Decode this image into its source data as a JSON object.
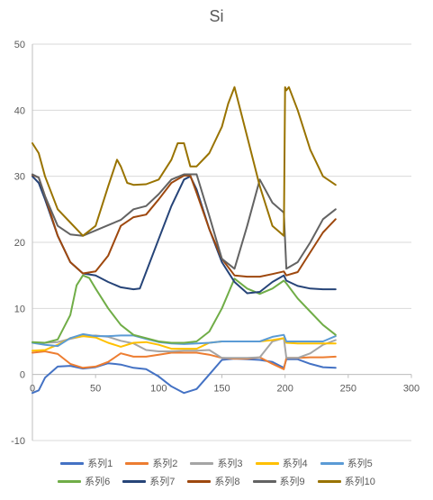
{
  "chart_data": {
    "type": "line",
    "title": "Si",
    "xlabel": "",
    "ylabel": "",
    "xlim": [
      0,
      300
    ],
    "ylim": [
      -10,
      50
    ],
    "xticks": [
      0,
      50,
      100,
      150,
      200,
      250,
      300
    ],
    "yticks": [
      -10,
      0,
      10,
      20,
      30,
      40,
      50
    ],
    "grid": "horizontal",
    "legend": "bottom",
    "series": [
      {
        "name": "系列1",
        "color": "#4472C4",
        "x": [
          0,
          5,
          10,
          20,
          30,
          40,
          50,
          60,
          70,
          80,
          90,
          100,
          110,
          120,
          130,
          140,
          150,
          160,
          170,
          180,
          190,
          199,
          201,
          210,
          220,
          230,
          240
        ],
        "y": [
          -2.8,
          -2.4,
          -0.5,
          1.2,
          1.3,
          0.9,
          1.1,
          1.7,
          1.5,
          1.0,
          0.8,
          -0.3,
          -1.8,
          -2.8,
          -2.2,
          0.0,
          2.2,
          2.4,
          2.3,
          2.2,
          1.9,
          1.0,
          2.3,
          2.3,
          1.6,
          1.1,
          1.0
        ]
      },
      {
        "name": "系列2",
        "color": "#ED7D31",
        "x": [
          0,
          10,
          20,
          30,
          40,
          50,
          60,
          70,
          80,
          90,
          100,
          110,
          120,
          130,
          140,
          150,
          160,
          170,
          180,
          190,
          199,
          201,
          210,
          220,
          230,
          240
        ],
        "y": [
          3.3,
          3.5,
          3.1,
          1.6,
          1.0,
          1.2,
          1.9,
          3.2,
          2.7,
          2.7,
          3.0,
          3.3,
          3.3,
          3.3,
          3.0,
          2.5,
          2.4,
          2.4,
          2.6,
          1.6,
          0.8,
          2.5,
          2.5,
          2.6,
          2.6,
          2.7
        ]
      },
      {
        "name": "系列3",
        "color": "#A5A5A5",
        "x": [
          0,
          10,
          20,
          30,
          40,
          50,
          60,
          70,
          80,
          90,
          100,
          110,
          120,
          130,
          140,
          150,
          160,
          170,
          180,
          190,
          199,
          201,
          210,
          220,
          230,
          240
        ],
        "y": [
          4.8,
          4.8,
          4.9,
          5.4,
          5.8,
          5.9,
          5.7,
          5.1,
          4.7,
          3.7,
          3.5,
          3.5,
          3.6,
          3.6,
          3.7,
          2.5,
          2.5,
          2.5,
          2.6,
          5.0,
          5.5,
          2.5,
          2.5,
          3.2,
          4.5,
          5.2
        ]
      },
      {
        "name": "系列4",
        "color": "#FFC000",
        "x": [
          0,
          10,
          20,
          30,
          40,
          50,
          60,
          70,
          80,
          90,
          100,
          110,
          120,
          130,
          140,
          150,
          160,
          170,
          180,
          190,
          199,
          201,
          210,
          220,
          230,
          240
        ],
        "y": [
          3.6,
          3.7,
          4.5,
          5.5,
          5.8,
          5.6,
          4.8,
          4.2,
          4.8,
          4.9,
          4.5,
          3.9,
          3.9,
          3.9,
          4.8,
          5.0,
          5.0,
          5.0,
          5.0,
          5.2,
          5.5,
          4.8,
          4.7,
          4.7,
          4.7,
          4.7
        ]
      },
      {
        "name": "系列5",
        "color": "#5B9BD5",
        "x": [
          0,
          10,
          20,
          30,
          40,
          50,
          60,
          70,
          80,
          90,
          100,
          110,
          120,
          130,
          140,
          150,
          160,
          170,
          180,
          190,
          199,
          201,
          210,
          220,
          230,
          240
        ],
        "y": [
          4.8,
          4.5,
          4.3,
          5.5,
          6.1,
          5.8,
          5.8,
          5.9,
          5.9,
          5.4,
          4.9,
          4.7,
          4.6,
          4.7,
          4.8,
          5.0,
          5.0,
          5.0,
          5.0,
          5.7,
          6.0,
          5.0,
          5.0,
          5.0,
          5.0,
          5.8
        ]
      },
      {
        "name": "系列6",
        "color": "#70AD47",
        "x": [
          0,
          10,
          20,
          30,
          35,
          40,
          45,
          50,
          60,
          70,
          80,
          90,
          100,
          110,
          120,
          130,
          140,
          150,
          160,
          170,
          180,
          190,
          199,
          201,
          210,
          220,
          230,
          240
        ],
        "y": [
          4.9,
          4.8,
          5.3,
          9.0,
          13.5,
          15.0,
          14.6,
          13.0,
          10.0,
          7.5,
          6.0,
          5.5,
          5.0,
          4.8,
          4.8,
          5.0,
          6.5,
          10.0,
          14.5,
          13.0,
          12.2,
          13.0,
          14.2,
          13.8,
          11.5,
          9.5,
          7.5,
          6.0
        ]
      },
      {
        "name": "系列7",
        "color": "#264478",
        "x": [
          0,
          5,
          10,
          20,
          30,
          40,
          50,
          60,
          70,
          80,
          85,
          90,
          100,
          110,
          120,
          125,
          130,
          140,
          150,
          160,
          170,
          180,
          190,
          199,
          201,
          210,
          220,
          230,
          240
        ],
        "y": [
          30.0,
          29.0,
          26.5,
          21.0,
          17.0,
          15.3,
          15.0,
          14.0,
          13.2,
          12.9,
          13.0,
          15.5,
          20.5,
          25.5,
          29.5,
          30.0,
          28.0,
          22.0,
          17.0,
          14.0,
          12.3,
          12.5,
          14.0,
          15.0,
          14.2,
          13.4,
          13.0,
          12.9,
          12.9
        ]
      },
      {
        "name": "系列8",
        "color": "#9E480E",
        "x": [
          0,
          5,
          10,
          20,
          30,
          40,
          50,
          60,
          70,
          80,
          90,
          100,
          110,
          120,
          125,
          130,
          140,
          150,
          160,
          170,
          180,
          190,
          199,
          201,
          210,
          220,
          230,
          240
        ],
        "y": [
          30.2,
          29.8,
          27.0,
          21.0,
          17.0,
          15.3,
          15.6,
          18.0,
          22.5,
          23.8,
          24.2,
          26.5,
          29.0,
          30.1,
          30.1,
          27.5,
          22.0,
          17.5,
          15.0,
          14.8,
          14.8,
          15.2,
          15.6,
          15.0,
          15.5,
          18.5,
          21.5,
          23.5
        ]
      },
      {
        "name": "系列9",
        "color": "#636363",
        "x": [
          0,
          5,
          10,
          20,
          30,
          40,
          50,
          60,
          70,
          80,
          90,
          100,
          110,
          120,
          130,
          140,
          150,
          160,
          170,
          180,
          190,
          199,
          201,
          210,
          220,
          230,
          240
        ],
        "y": [
          30.3,
          29.8,
          27.0,
          22.5,
          21.2,
          21.0,
          21.8,
          22.6,
          23.4,
          25.0,
          25.5,
          27.3,
          29.5,
          30.3,
          30.3,
          24.0,
          17.5,
          16.0,
          22.5,
          29.5,
          26.0,
          24.5,
          16.0,
          17.0,
          20.0,
          23.5,
          25.0
        ]
      },
      {
        "name": "系列10",
        "color": "#997300",
        "x": [
          0,
          5,
          10,
          20,
          30,
          40,
          50,
          60,
          67,
          70,
          75,
          80,
          90,
          100,
          110,
          115,
          120,
          125,
          130,
          140,
          150,
          155,
          160,
          170,
          180,
          190,
          199,
          200,
          201,
          203,
          210,
          220,
          230,
          240
        ],
        "y": [
          35.0,
          33.5,
          30.0,
          25.0,
          23.0,
          21.0,
          22.5,
          28.5,
          32.5,
          31.5,
          29.0,
          28.7,
          28.8,
          29.5,
          32.5,
          35.0,
          35.0,
          31.5,
          31.5,
          33.5,
          37.5,
          41.0,
          43.5,
          36.0,
          28.5,
          22.5,
          21.0,
          43.5,
          43.0,
          43.5,
          40.0,
          34.0,
          30.0,
          28.7
        ]
      }
    ]
  }
}
